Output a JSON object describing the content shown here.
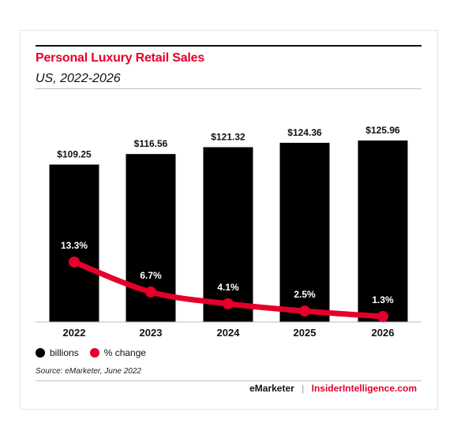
{
  "chart_data": {
    "type": "bar",
    "title": "Personal Luxury Retail Sales",
    "subtitle": "US, 2022-2026",
    "categories": [
      "2022",
      "2023",
      "2024",
      "2025",
      "2026"
    ],
    "series": [
      {
        "name": "billions",
        "type": "bar",
        "values": [
          109.25,
          116.56,
          121.32,
          124.36,
          125.96
        ],
        "labels": [
          "$109.25",
          "$116.56",
          "$121.32",
          "$124.36",
          "$125.96"
        ],
        "color": "#000000"
      },
      {
        "name": "% change",
        "type": "line",
        "values": [
          13.3,
          6.7,
          4.1,
          2.5,
          1.3
        ],
        "labels": [
          "13.3%",
          "6.7%",
          "4.1%",
          "2.5%",
          "1.3%"
        ],
        "color": "#e4002b"
      }
    ],
    "legend_position": "bottom-left",
    "grid": false
  },
  "source": "Source: eMarketer, June 2022",
  "footer": {
    "brand": "eMarketer",
    "separator": "|",
    "site": "InsiderIntelligence.com"
  },
  "colors": {
    "accent": "#e4002b",
    "bar": "#000000"
  }
}
